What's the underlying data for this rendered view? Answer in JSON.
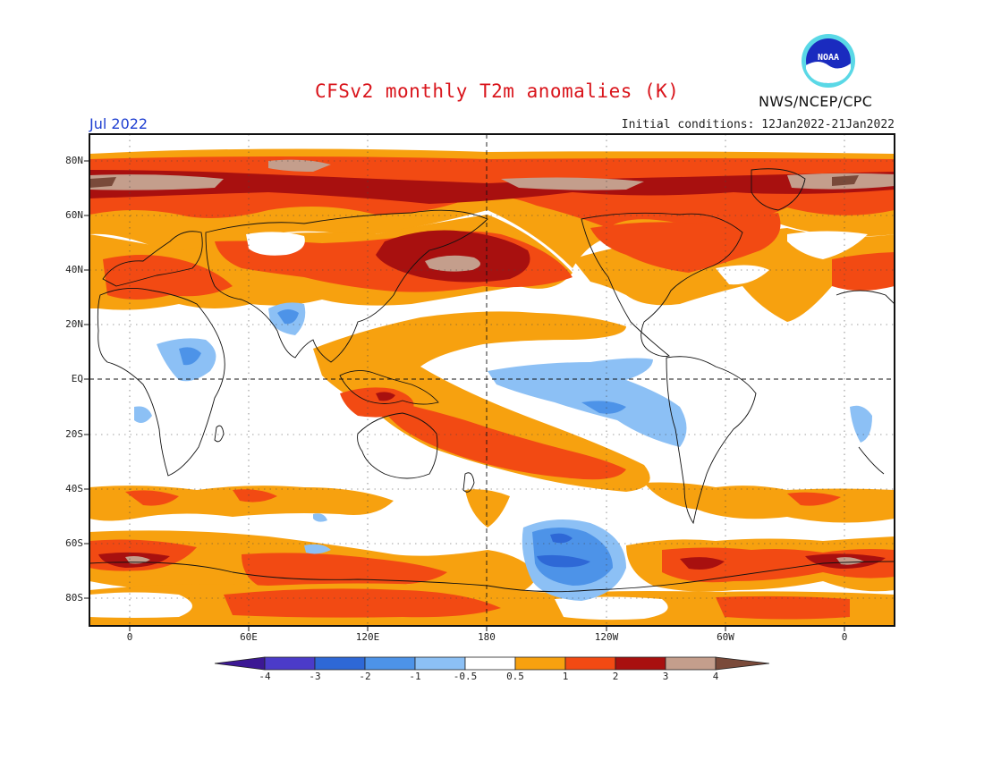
{
  "title": "CFSv2 monthly T2m anomalies (K)",
  "valid_month": "Jul 2022",
  "initial_conditions": "Initial conditions: 12Jan2022-21Jan2022",
  "agency": "NWS/NCEP/CPC",
  "logo_text": "NOAA",
  "map": {
    "projection": "cylindrical",
    "lat_labels": [
      "80N",
      "60N",
      "40N",
      "20N",
      "EQ",
      "20S",
      "40S",
      "60S",
      "80S"
    ],
    "lon_labels": [
      "0",
      "60E",
      "120E",
      "180",
      "120W",
      "60W",
      "0"
    ],
    "dashed_lines": [
      "EQ",
      "180"
    ],
    "grid": "dotted"
  },
  "colorbar": {
    "labels": [
      "-4",
      "-3",
      "-2",
      "-1",
      "-0.5",
      "0.5",
      "1",
      "2",
      "3",
      "4"
    ],
    "colors": [
      "#3c1894",
      "#4b3bc9",
      "#2e68d6",
      "#4d93e8",
      "#8cc0f5",
      "#ffffff",
      "#f7a10f",
      "#f24a13",
      "#a8100f",
      "#c49e8c",
      "#7a4a3a"
    ]
  },
  "colors": {
    "title": "#d9141b",
    "month": "#1f3fd1",
    "neutral": "#ffffff",
    "warm_0_5": "#f7a10f",
    "warm_1": "#f24a13",
    "warm_2": "#a8100f",
    "warm_3": "#c49e8c",
    "warm_4": "#7a4a3a",
    "cool_0_5": "#8cc0f5",
    "cool_1": "#4d93e8",
    "cool_2": "#2e68d6"
  }
}
